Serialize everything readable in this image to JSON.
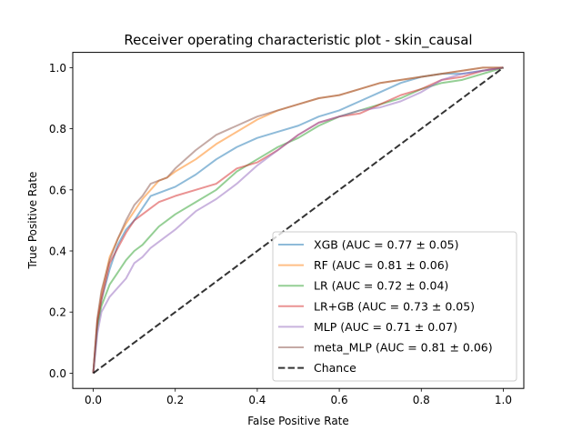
{
  "colors": {
    "XGB": "#1f77b4",
    "RF": "#ff7f0e",
    "LR": "#2ca02c",
    "LR+GB": "#d62728",
    "MLP": "#9467bd",
    "meta_MLP": "#8c564b",
    "Chance": "#000000"
  },
  "chart_data": {
    "type": "line",
    "title": "Receiver operating characteristic plot - skin_causal",
    "xlabel": "False Positive Rate",
    "ylabel": "True Positive Rate",
    "xlim": [
      -0.05,
      1.05
    ],
    "ylim": [
      -0.05,
      1.05
    ],
    "xticks": [
      "0.0",
      "0.2",
      "0.4",
      "0.6",
      "0.8",
      "1.0"
    ],
    "yticks": [
      "0.0",
      "0.2",
      "0.4",
      "0.6",
      "0.8",
      "1.0"
    ],
    "xtick_values": [
      0,
      0.2,
      0.4,
      0.6,
      0.8,
      1.0
    ],
    "ytick_values": [
      0,
      0.2,
      0.4,
      0.6,
      0.8,
      1.0
    ],
    "grid": false,
    "legend_position": "lower-right",
    "series": [
      {
        "name": "XGB (AUC = 0.77 ± 0.05)",
        "key": "XGB",
        "style": "solid",
        "x": [
          0,
          0.01,
          0.02,
          0.04,
          0.06,
          0.08,
          0.1,
          0.12,
          0.14,
          0.16,
          0.18,
          0.2,
          0.25,
          0.3,
          0.35,
          0.4,
          0.45,
          0.5,
          0.55,
          0.6,
          0.65,
          0.7,
          0.75,
          0.8,
          0.85,
          0.9,
          0.95,
          1.0
        ],
        "y": [
          0,
          0.16,
          0.24,
          0.34,
          0.42,
          0.47,
          0.5,
          0.54,
          0.58,
          0.59,
          0.6,
          0.61,
          0.65,
          0.7,
          0.74,
          0.77,
          0.79,
          0.81,
          0.84,
          0.86,
          0.89,
          0.92,
          0.95,
          0.97,
          0.98,
          0.98,
          0.99,
          1.0
        ]
      },
      {
        "name": "RF (AUC = 0.81 ± 0.06)",
        "key": "RF",
        "style": "solid",
        "x": [
          0,
          0.01,
          0.02,
          0.04,
          0.06,
          0.08,
          0.1,
          0.12,
          0.14,
          0.16,
          0.18,
          0.2,
          0.25,
          0.3,
          0.35,
          0.4,
          0.45,
          0.5,
          0.55,
          0.6,
          0.65,
          0.7,
          0.75,
          0.8,
          0.85,
          0.9,
          0.95,
          1.0
        ],
        "y": [
          0,
          0.17,
          0.26,
          0.38,
          0.44,
          0.49,
          0.53,
          0.57,
          0.6,
          0.63,
          0.64,
          0.66,
          0.7,
          0.75,
          0.79,
          0.83,
          0.86,
          0.88,
          0.9,
          0.91,
          0.93,
          0.95,
          0.96,
          0.97,
          0.98,
          0.99,
          1.0,
          1.0
        ]
      },
      {
        "name": "LR (AUC = 0.72 ± 0.04)",
        "key": "LR",
        "style": "solid",
        "x": [
          0,
          0.01,
          0.02,
          0.04,
          0.06,
          0.08,
          0.1,
          0.12,
          0.14,
          0.16,
          0.18,
          0.2,
          0.25,
          0.3,
          0.35,
          0.4,
          0.45,
          0.5,
          0.55,
          0.6,
          0.65,
          0.7,
          0.75,
          0.8,
          0.85,
          0.9,
          0.95,
          1.0
        ],
        "y": [
          0,
          0.15,
          0.22,
          0.29,
          0.33,
          0.37,
          0.4,
          0.42,
          0.45,
          0.48,
          0.5,
          0.52,
          0.56,
          0.6,
          0.66,
          0.7,
          0.74,
          0.77,
          0.81,
          0.84,
          0.86,
          0.88,
          0.9,
          0.93,
          0.95,
          0.96,
          0.98,
          1.0
        ]
      },
      {
        "name": "LR+GB (AUC = 0.73 ± 0.05)",
        "key": "LR+GB",
        "style": "solid",
        "x": [
          0,
          0.01,
          0.02,
          0.04,
          0.06,
          0.08,
          0.1,
          0.12,
          0.14,
          0.16,
          0.18,
          0.2,
          0.25,
          0.3,
          0.35,
          0.4,
          0.45,
          0.5,
          0.55,
          0.6,
          0.65,
          0.7,
          0.75,
          0.8,
          0.85,
          0.9,
          0.95,
          1.0
        ],
        "y": [
          0,
          0.17,
          0.24,
          0.36,
          0.41,
          0.46,
          0.5,
          0.52,
          0.54,
          0.56,
          0.57,
          0.58,
          0.6,
          0.62,
          0.67,
          0.69,
          0.73,
          0.78,
          0.82,
          0.84,
          0.85,
          0.88,
          0.91,
          0.93,
          0.96,
          0.97,
          0.99,
          1.0
        ]
      },
      {
        "name": "MLP (AUC = 0.71 ± 0.07)",
        "key": "MLP",
        "style": "solid",
        "x": [
          0,
          0.01,
          0.02,
          0.04,
          0.06,
          0.08,
          0.1,
          0.12,
          0.14,
          0.16,
          0.18,
          0.2,
          0.25,
          0.3,
          0.35,
          0.4,
          0.45,
          0.5,
          0.55,
          0.6,
          0.65,
          0.7,
          0.75,
          0.8,
          0.85,
          0.9,
          0.95,
          1.0
        ],
        "y": [
          0,
          0.13,
          0.2,
          0.25,
          0.28,
          0.31,
          0.36,
          0.38,
          0.41,
          0.43,
          0.45,
          0.47,
          0.53,
          0.57,
          0.62,
          0.68,
          0.73,
          0.78,
          0.82,
          0.84,
          0.86,
          0.87,
          0.89,
          0.92,
          0.96,
          0.98,
          0.99,
          1.0
        ]
      },
      {
        "name": "meta_MLP (AUC = 0.81 ± 0.06)",
        "key": "meta_MLP",
        "style": "solid",
        "x": [
          0,
          0.01,
          0.02,
          0.04,
          0.06,
          0.08,
          0.1,
          0.12,
          0.14,
          0.16,
          0.18,
          0.2,
          0.25,
          0.3,
          0.35,
          0.4,
          0.45,
          0.5,
          0.55,
          0.6,
          0.65,
          0.7,
          0.75,
          0.8,
          0.85,
          0.9,
          0.95,
          1.0
        ],
        "y": [
          0,
          0.18,
          0.27,
          0.37,
          0.44,
          0.5,
          0.55,
          0.58,
          0.62,
          0.63,
          0.64,
          0.67,
          0.73,
          0.78,
          0.81,
          0.84,
          0.86,
          0.88,
          0.9,
          0.91,
          0.93,
          0.95,
          0.96,
          0.97,
          0.98,
          0.99,
          1.0,
          1.0
        ]
      },
      {
        "name": "Chance",
        "key": "Chance",
        "style": "dashed",
        "x": [
          0,
          1
        ],
        "y": [
          0,
          1
        ]
      }
    ]
  }
}
